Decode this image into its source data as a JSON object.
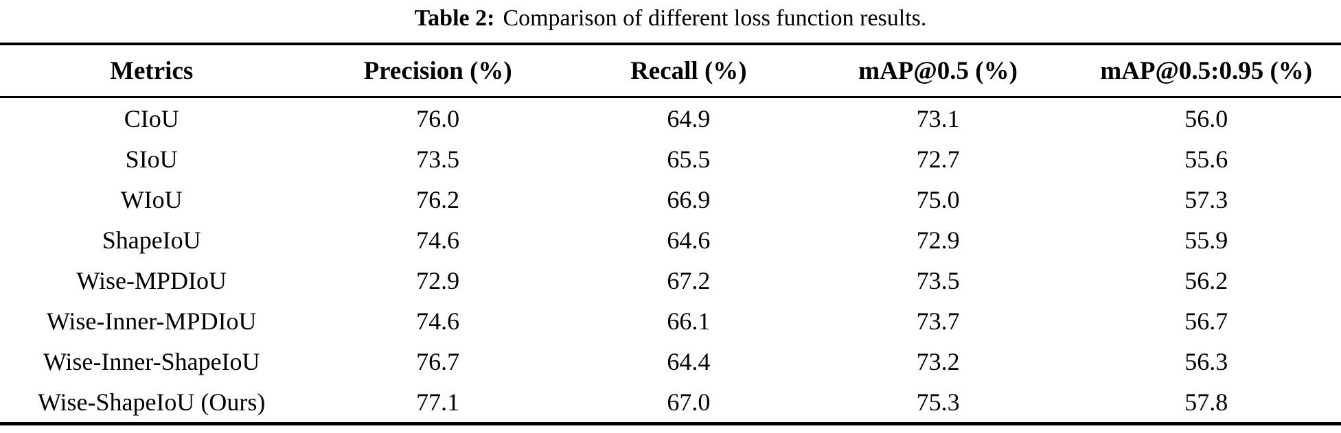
{
  "caption": {
    "label": "Table 2:",
    "text": "Comparison of different loss function results."
  },
  "table": {
    "columns": [
      "Metrics",
      "Precision (%)",
      "Recall (%)",
      "mAP@0.5 (%)",
      "mAP@0.5:0.95 (%)"
    ],
    "rows": [
      {
        "metric": "CIoU",
        "values": [
          "76.0",
          "64.9",
          "73.1",
          "56.0"
        ]
      },
      {
        "metric": "SIoU",
        "values": [
          "73.5",
          "65.5",
          "72.7",
          "55.6"
        ]
      },
      {
        "metric": "WIoU",
        "values": [
          "76.2",
          "66.9",
          "75.0",
          "57.3"
        ]
      },
      {
        "metric": "ShapeIoU",
        "values": [
          "74.6",
          "64.6",
          "72.9",
          "55.9"
        ]
      },
      {
        "metric": "Wise-MPDIoU",
        "values": [
          "72.9",
          "67.2",
          "73.5",
          "56.2"
        ]
      },
      {
        "metric": "Wise-Inner-MPDIoU",
        "values": [
          "74.6",
          "66.1",
          "73.7",
          "56.7"
        ]
      },
      {
        "metric": "Wise-Inner-ShapeIoU",
        "values": [
          "76.7",
          "64.4",
          "73.2",
          "56.3"
        ]
      },
      {
        "metric": "Wise-ShapeIoU (Ours)",
        "values": [
          "77.1",
          "67.0",
          "75.3",
          "57.8"
        ]
      }
    ]
  },
  "colors": {
    "text": "#000000",
    "background": "#ffffff",
    "rule": "#000000"
  }
}
